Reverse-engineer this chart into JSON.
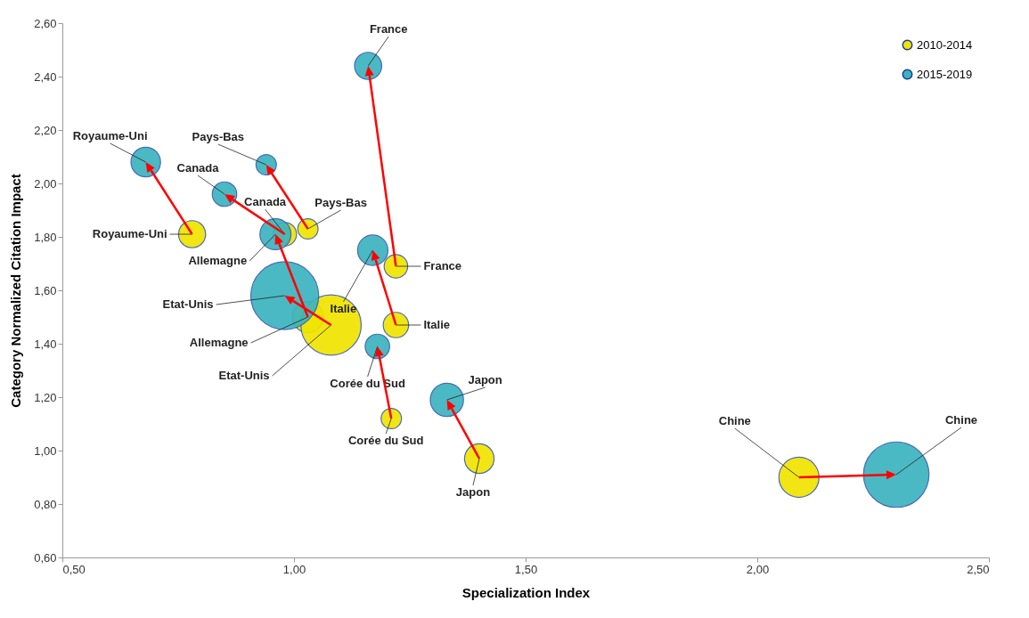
{
  "chart_data": {
    "type": "bubble",
    "xlabel": "Specialization Index",
    "ylabel": "Category Normalized Citation Impact",
    "xlim": [
      0.5,
      2.5
    ],
    "ylim": [
      0.6,
      2.6
    ],
    "xticks": [
      {
        "value": 0.5,
        "label": "0,50"
      },
      {
        "value": 1.0,
        "label": "1,00"
      },
      {
        "value": 1.5,
        "label": "1,50"
      },
      {
        "value": 2.0,
        "label": "2,00"
      },
      {
        "value": 2.5,
        "label": "2,50"
      }
    ],
    "yticks": [
      {
        "value": 0.6,
        "label": "0,60"
      },
      {
        "value": 0.8,
        "label": "0,80"
      },
      {
        "value": 1.0,
        "label": "1,00"
      },
      {
        "value": 1.2,
        "label": "1,20"
      },
      {
        "value": 1.4,
        "label": "1,40"
      },
      {
        "value": 1.6,
        "label": "1,60"
      },
      {
        "value": 1.8,
        "label": "1,80"
      },
      {
        "value": 2.0,
        "label": "2,00"
      },
      {
        "value": 2.2,
        "label": "2,20"
      },
      {
        "value": 2.4,
        "label": "2,40"
      },
      {
        "value": 2.6,
        "label": "2,60"
      }
    ],
    "grid": false,
    "legend": "top right",
    "series": [
      {
        "name": "2010-2014",
        "color": "#f0e400",
        "x": [
          0.78,
          0.98,
          1.03,
          1.03,
          1.08,
          1.22,
          1.22,
          1.21,
          1.4,
          2.09
        ],
        "values": [
          1.81,
          1.81,
          1.83,
          1.5,
          1.47,
          1.69,
          1.47,
          1.12,
          0.97,
          0.9
        ],
        "sizes": [
          0.16,
          0.12,
          0.09,
          0.21,
          0.79,
          0.12,
          0.14,
          0.09,
          0.19,
          0.35
        ]
      },
      {
        "name": "2015-2019",
        "color": "#3cb4c0",
        "x": [
          0.68,
          0.85,
          0.94,
          0.96,
          0.98,
          1.16,
          1.17,
          1.18,
          1.33,
          2.3
        ],
        "values": [
          2.08,
          1.96,
          2.07,
          1.81,
          1.58,
          2.44,
          1.75,
          1.39,
          1.19,
          0.91
        ],
        "sizes": [
          0.19,
          0.13,
          0.09,
          0.21,
          1,
          0.16,
          0.2,
          0.13,
          0.24,
          0.93
        ]
      }
    ],
    "annotations": [
      {
        "text": "Royaume-Uni",
        "x": 0.78,
        "y": 1.81
      },
      {
        "text": "Canada",
        "x": 0.98,
        "y": 1.81
      },
      {
        "text": "Pays-Bas",
        "x": 1.03,
        "y": 1.83
      },
      {
        "text": "Allemagne",
        "x": 1.03,
        "y": 1.5
      },
      {
        "text": "Etat-Unis",
        "x": 1.08,
        "y": 1.47
      },
      {
        "text": "France",
        "x": 1.22,
        "y": 1.69
      },
      {
        "text": "Italie",
        "x": 1.22,
        "y": 1.47
      },
      {
        "text": "Corée du Sud",
        "x": 1.21,
        "y": 1.12
      },
      {
        "text": "Japon",
        "x": 1.4,
        "y": 0.97
      },
      {
        "text": "Chine",
        "x": 2.09,
        "y": 0.9
      },
      {
        "text": "Royaume-Uni",
        "x": 0.68,
        "y": 2.08
      },
      {
        "text": "Canada",
        "x": 0.85,
        "y": 1.96
      },
      {
        "text": "Pays-Bas",
        "x": 0.94,
        "y": 2.07
      },
      {
        "text": "Allemagne",
        "x": 0.96,
        "y": 1.81
      },
      {
        "text": "Etat-Unis",
        "x": 0.98,
        "y": 1.58
      },
      {
        "text": "France",
        "x": 1.16,
        "y": 2.44
      },
      {
        "text": "Italie",
        "x": 1.17,
        "y": 1.75
      },
      {
        "text": "Corée du Sud",
        "x": 1.18,
        "y": 1.39
      },
      {
        "text": "Japon",
        "x": 1.33,
        "y": 1.19
      },
      {
        "text": "Chine",
        "x": 2.3,
        "y": 0.91
      }
    ]
  }
}
